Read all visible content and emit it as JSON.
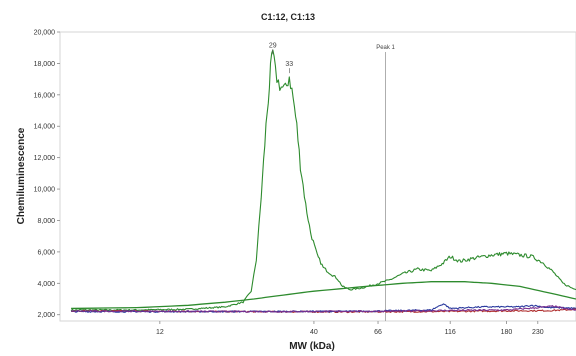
{
  "chart_data": {
    "type": "line",
    "title": "C1:12, C1:13",
    "xlabel": "MW (kDa)",
    "ylabel": "Chemiluminescence",
    "x_scale": "log",
    "xlim": [
      5.5,
      310
    ],
    "ylim": [
      1600,
      20000
    ],
    "y_ticks": [
      2000,
      4000,
      6000,
      8000,
      10000,
      12000,
      14000,
      16000,
      18000,
      20000
    ],
    "y_tick_labels": [
      "2,000",
      "4,000",
      "6,000",
      "8,000",
      "10,000",
      "12,000",
      "14,000",
      "16,000",
      "18,000",
      "20,000"
    ],
    "x_ticks": [
      12,
      40,
      66,
      116,
      180,
      230
    ],
    "x_tick_labels": [
      "12",
      "40",
      "66",
      "116",
      "180",
      "230"
    ],
    "grid": false,
    "annotations": [
      {
        "text": "29",
        "x": 29,
        "y": 18900
      },
      {
        "text": "33",
        "x": 33,
        "y": 17700
      }
    ],
    "vertical_marker": {
      "label": "Peak 1",
      "x": 70
    },
    "series": [
      {
        "color": "#2e8b2e",
        "style": "noisy",
        "points": [
          [
            6,
            2300
          ],
          [
            10,
            2300
          ],
          [
            15,
            2350
          ],
          [
            20,
            2500
          ],
          [
            23,
            2800
          ],
          [
            24.5,
            3500
          ],
          [
            25.5,
            5500
          ],
          [
            26.5,
            9500
          ],
          [
            27.5,
            14000
          ],
          [
            28.5,
            17500
          ],
          [
            29,
            18700
          ],
          [
            29.6,
            17400
          ],
          [
            30.3,
            16800
          ],
          [
            31,
            16500
          ],
          [
            32,
            16300
          ],
          [
            33,
            17200
          ],
          [
            34,
            15800
          ],
          [
            35,
            14000
          ],
          [
            36,
            11500
          ],
          [
            37.5,
            9000
          ],
          [
            39,
            7200
          ],
          [
            41,
            5800
          ],
          [
            43,
            5000
          ],
          [
            45,
            4700
          ],
          [
            48,
            4300
          ],
          [
            50,
            3800
          ],
          [
            53,
            3600
          ],
          [
            58,
            3700
          ],
          [
            65,
            3950
          ],
          [
            72,
            4200
          ],
          [
            80,
            4600
          ],
          [
            90,
            4900
          ],
          [
            100,
            4800
          ],
          [
            110,
            5300
          ],
          [
            116,
            5700
          ],
          [
            125,
            5400
          ],
          [
            140,
            5600
          ],
          [
            160,
            5800
          ],
          [
            180,
            5900
          ],
          [
            200,
            5800
          ],
          [
            220,
            5700
          ],
          [
            240,
            5300
          ],
          [
            260,
            4700
          ],
          [
            280,
            4000
          ],
          [
            300,
            3700
          ],
          [
            310,
            3600
          ]
        ]
      },
      {
        "color": "#2e8b2e",
        "style": "smooth",
        "points": [
          [
            6,
            2400
          ],
          [
            10,
            2450
          ],
          [
            15,
            2600
          ],
          [
            20,
            2800
          ],
          [
            25,
            3000
          ],
          [
            30,
            3200
          ],
          [
            40,
            3500
          ],
          [
            60,
            3800
          ],
          [
            80,
            4000
          ],
          [
            100,
            4100
          ],
          [
            130,
            4100
          ],
          [
            160,
            4000
          ],
          [
            200,
            3800
          ],
          [
            250,
            3400
          ],
          [
            310,
            3000
          ]
        ]
      },
      {
        "color": "#b03030",
        "style": "noisy",
        "points": [
          [
            6,
            2250
          ],
          [
            20,
            2200
          ],
          [
            50,
            2180
          ],
          [
            100,
            2200
          ],
          [
            200,
            2250
          ],
          [
            250,
            2260
          ],
          [
            280,
            2300
          ],
          [
            310,
            2350
          ]
        ]
      },
      {
        "color": "#2a3a9e",
        "style": "noisy",
        "points": [
          [
            6,
            2200
          ],
          [
            20,
            2200
          ],
          [
            60,
            2220
          ],
          [
            100,
            2300
          ],
          [
            110,
            2700
          ],
          [
            116,
            2400
          ],
          [
            150,
            2500
          ],
          [
            200,
            2500
          ],
          [
            220,
            2600
          ],
          [
            250,
            2450
          ],
          [
            280,
            2450
          ],
          [
            310,
            2400
          ]
        ]
      },
      {
        "color": "#7a2f8f",
        "style": "noisy",
        "points": [
          [
            6,
            2230
          ],
          [
            30,
            2200
          ],
          [
            80,
            2230
          ],
          [
            120,
            2280
          ],
          [
            180,
            2300
          ],
          [
            230,
            2450
          ],
          [
            260,
            2550
          ],
          [
            290,
            2350
          ],
          [
            310,
            2300
          ]
        ]
      }
    ]
  }
}
